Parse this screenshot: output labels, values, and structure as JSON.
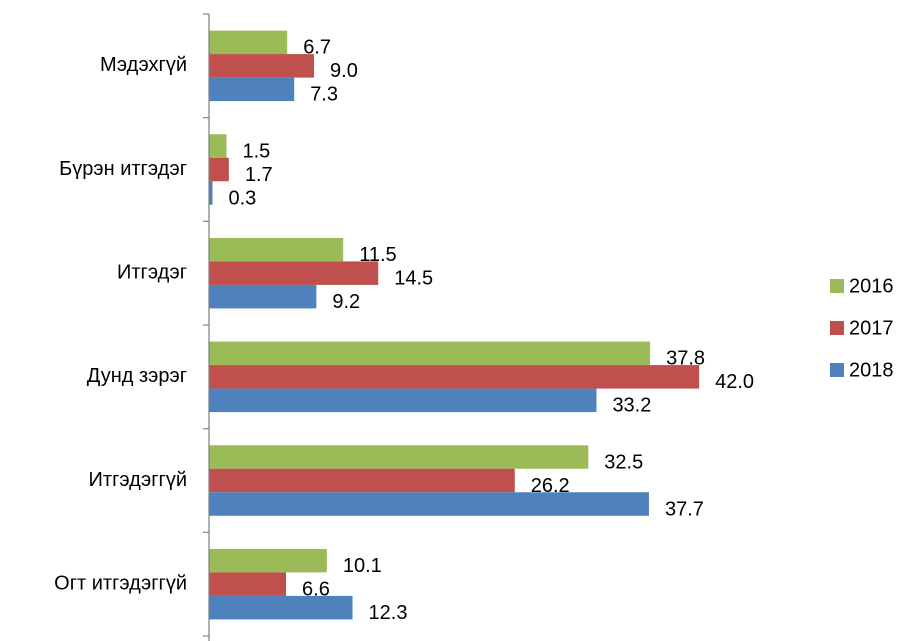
{
  "chart_data": {
    "type": "bar",
    "orientation": "horizontal",
    "title": "",
    "xlabel": "",
    "ylabel": "",
    "categories": [
      "Мэдэхгүй",
      "Бүрэн итгэдэг",
      "Итгэдэг",
      "Дунд зэрэг",
      "Итгэдэггүй",
      "Огт итгэдэггүй"
    ],
    "series": [
      {
        "name": "2016",
        "color": "#9BBB59",
        "values": [
          6.7,
          1.5,
          11.5,
          37.8,
          32.5,
          10.1
        ]
      },
      {
        "name": "2017",
        "color": "#C0504D",
        "values": [
          9.0,
          1.7,
          14.5,
          42.0,
          26.2,
          6.6
        ]
      },
      {
        "name": "2018",
        "color": "#4F81BD",
        "values": [
          7.3,
          0.3,
          9.2,
          33.2,
          37.7,
          12.3
        ]
      }
    ],
    "xlim": [
      0,
      45
    ],
    "grid": false,
    "legend": "right"
  }
}
